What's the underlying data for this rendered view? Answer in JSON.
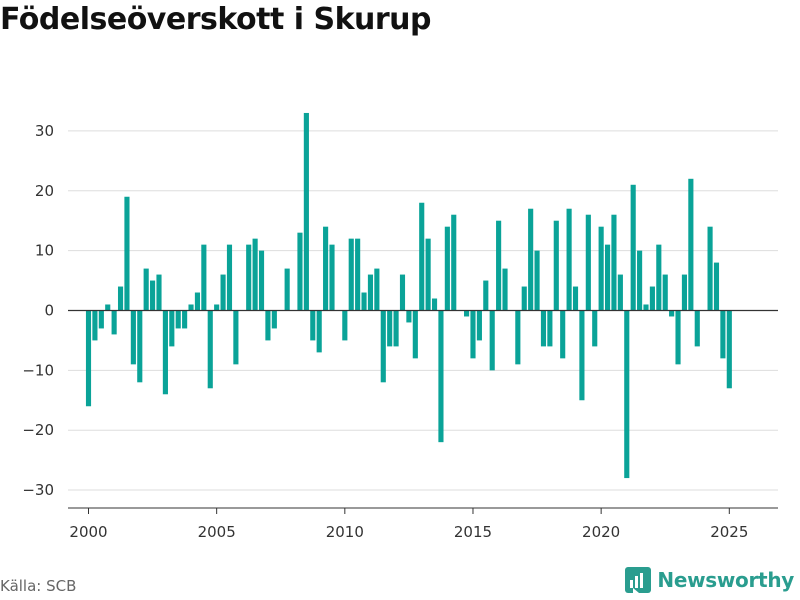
{
  "title": "Födelseöverskott i Skurup",
  "source": "Källa: SCB",
  "brand": {
    "name": "Newsworthy",
    "icon": "bar-chart-logo-icon"
  },
  "colors": {
    "bar": "#0aa398",
    "grid": "#dddddd",
    "zero_line": "#333333",
    "brand": "#2a9d8f"
  },
  "chart_data": {
    "type": "bar",
    "title": "Födelseöverskott i Skurup",
    "xlabel": "",
    "ylabel": "",
    "grid": true,
    "legend": "none",
    "ylim": [
      -33,
      36
    ],
    "xlim": [
      1999.2,
      2026.9
    ],
    "yticks": [
      -30,
      -20,
      -10,
      0,
      10,
      20,
      30
    ],
    "xticks": [
      2000,
      2005,
      2010,
      2015,
      2020,
      2025
    ],
    "start": 2000,
    "period": "quarter",
    "series": [
      {
        "values": [
          -16,
          -5,
          -3,
          1,
          -4,
          4,
          19,
          -9,
          -12,
          7,
          5,
          6,
          -14,
          -6,
          -3,
          -3,
          1,
          3,
          11,
          -13,
          1,
          6,
          11,
          -9,
          0,
          11,
          12,
          10,
          -5,
          -3,
          0,
          7,
          0,
          13,
          33,
          -5,
          -7,
          14,
          11,
          0,
          -5,
          12,
          12,
          3,
          6,
          7,
          -12,
          -6,
          -6,
          6,
          -2,
          -8,
          18,
          12,
          2,
          -22,
          14,
          16,
          0,
          -1,
          -8,
          -5,
          5,
          -10,
          15,
          7,
          0,
          -9,
          4,
          17,
          10,
          -6,
          -6,
          15,
          -8,
          17,
          4,
          -15,
          16,
          -6,
          14,
          11,
          16,
          6,
          -28,
          21,
          10,
          1,
          4,
          11,
          6,
          -1,
          -9,
          6,
          22,
          -6,
          0,
          14,
          8,
          -8,
          -13
        ]
      }
    ]
  }
}
